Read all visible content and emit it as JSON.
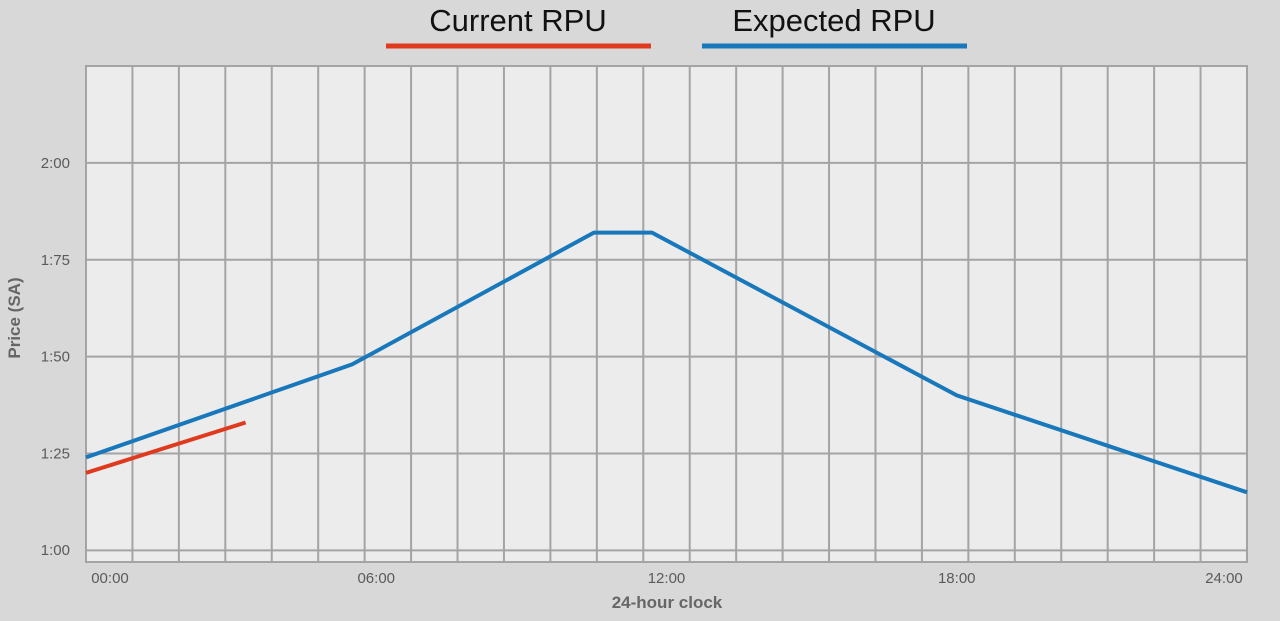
{
  "chart_data": {
    "type": "line",
    "xlabel": "24-hour clock",
    "ylabel": "Price (SA)",
    "x_range": [
      0,
      24
    ],
    "y_range": [
      0.97,
      2.25
    ],
    "x_ticks": [
      {
        "value": 0,
        "label": "00:00"
      },
      {
        "value": 6,
        "label": "06:00"
      },
      {
        "value": 12,
        "label": "12:00"
      },
      {
        "value": 18,
        "label": "18:00"
      },
      {
        "value": 24,
        "label": "24:00"
      }
    ],
    "y_ticks": [
      {
        "value": 1.0,
        "label": "1:00"
      },
      {
        "value": 1.25,
        "label": "1:25"
      },
      {
        "value": 1.5,
        "label": "1:50"
      },
      {
        "value": 1.75,
        "label": "1:75"
      },
      {
        "value": 2.0,
        "label": "2:00"
      }
    ],
    "grid": true,
    "legend_position": "top-center",
    "series": [
      {
        "name": "Current RPU",
        "color": "#e03a1e",
        "points": [
          [
            0,
            1.2
          ],
          [
            3.3,
            1.33
          ]
        ]
      },
      {
        "name": "Expected RPU",
        "color": "#1878bb",
        "points": [
          [
            0,
            1.24
          ],
          [
            5.5,
            1.48
          ],
          [
            10.5,
            1.82
          ],
          [
            11.7,
            1.82
          ],
          [
            18,
            1.4
          ],
          [
            24,
            1.15
          ]
        ]
      }
    ]
  }
}
